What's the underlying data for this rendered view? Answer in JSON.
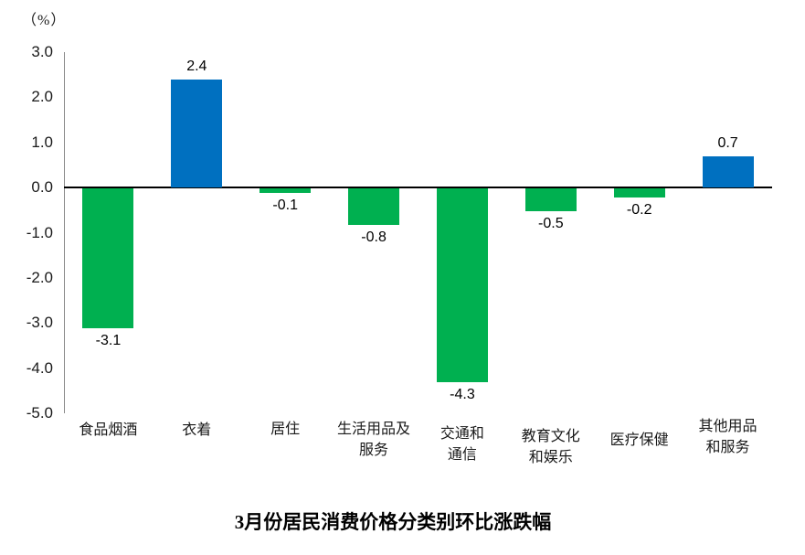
{
  "chart_data": {
    "type": "bar",
    "title": "3月份居民消费价格分类别环比涨跌幅",
    "unit_label": "（%）",
    "categories": [
      "食品烟酒",
      "衣着",
      "居住",
      "生活用品及\n服务",
      "交通和\n通信",
      "教育文化\n和娱乐",
      "医疗保健",
      "其他用品\n和服务"
    ],
    "values": [
      -3.1,
      2.4,
      -0.1,
      -0.8,
      -4.3,
      -0.5,
      -0.2,
      0.7
    ],
    "data_labels": [
      "-3.1",
      "2.4",
      "-0.1",
      "-0.8",
      "-4.3",
      "-0.5",
      "-0.2",
      "0.7"
    ],
    "xlabel": "",
    "ylabel": "",
    "ylim": [
      -5.0,
      3.0
    ],
    "y_tick_labels": [
      "3.0",
      "2.0",
      "1.0",
      "0.0",
      "-1.0",
      "-2.0",
      "-3.0",
      "-4.0",
      "-5.0"
    ],
    "y_tick_values": [
      3.0,
      2.0,
      1.0,
      0.0,
      -1.0,
      -2.0,
      -3.0,
      -4.0,
      -5.0
    ],
    "grid": false,
    "legend_position": "none",
    "colors": {
      "positive_bar": "#0070C0",
      "negative_bar": "#00B050",
      "axis_line": "#898989",
      "zero_line": "#000000",
      "text": "#1a1a1a"
    }
  }
}
